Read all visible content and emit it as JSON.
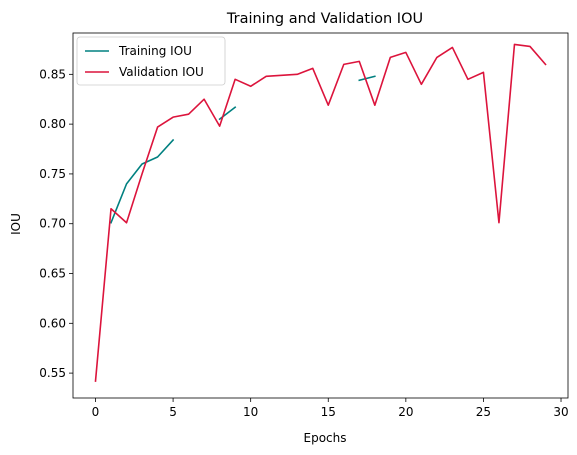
{
  "chart_data": {
    "type": "line",
    "title": "Training and Validation IOU",
    "xlabel": "Epochs",
    "ylabel": "IOU",
    "xlim": [
      -1.45,
      30.45
    ],
    "ylim": [
      0.525,
      0.8915
    ],
    "x_ticks": [
      0,
      5,
      10,
      15,
      20,
      25,
      30
    ],
    "y_ticks": [
      0.55,
      0.6,
      0.65,
      0.7,
      0.75,
      0.8,
      0.85
    ],
    "grid": false,
    "legend_position": "top-left",
    "series": [
      {
        "name": "Training IOU",
        "color": "#008080",
        "x": [
          0,
          1,
          2,
          3,
          4,
          5,
          6,
          7,
          8,
          9,
          10,
          11,
          12,
          13,
          14,
          15,
          16,
          17,
          18,
          19,
          20,
          21,
          22,
          23,
          24,
          25,
          26,
          27,
          28,
          29
        ],
        "y": [
          null,
          0.701,
          0.74,
          0.76,
          0.767,
          0.784,
          null,
          null,
          0.805,
          0.817,
          null,
          null,
          null,
          null,
          null,
          null,
          null,
          0.844,
          0.848,
          null,
          null,
          null,
          null,
          null,
          null,
          null,
          null,
          null,
          null,
          null
        ]
      },
      {
        "name": "Validation IOU",
        "color": "#dc143c",
        "x": [
          0,
          1,
          2,
          3,
          4,
          5,
          6,
          7,
          8,
          9,
          10,
          11,
          12,
          13,
          14,
          15,
          16,
          17,
          18,
          19,
          20,
          21,
          22,
          23,
          24,
          25,
          26,
          27,
          28,
          29
        ],
        "y": [
          0.542,
          0.715,
          0.701,
          0.75,
          0.797,
          0.807,
          0.81,
          0.825,
          0.798,
          0.845,
          0.838,
          0.848,
          0.849,
          0.85,
          0.856,
          0.819,
          0.86,
          0.863,
          0.819,
          0.867,
          0.872,
          0.84,
          0.867,
          0.877,
          0.845,
          0.852,
          0.701,
          0.88,
          0.878,
          0.86
        ]
      }
    ]
  }
}
